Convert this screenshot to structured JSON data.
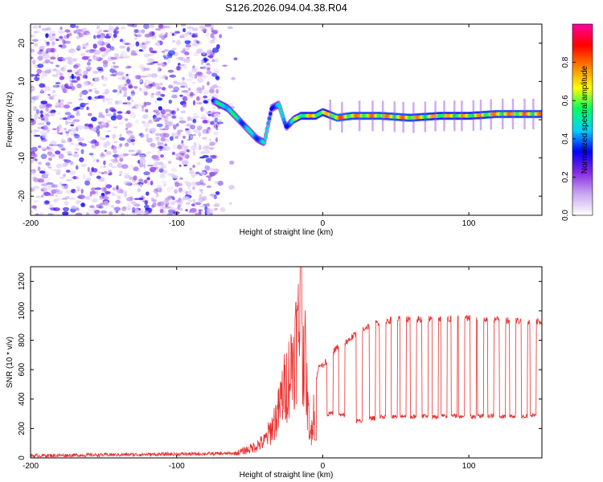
{
  "title": "S126.2026.094.04.38.R04",
  "chart_data": [
    {
      "type": "heatmap",
      "xlabel": "Height of straight line (km)",
      "ylabel": "Frequency (Hz)",
      "xlim": [
        -200,
        150
      ],
      "ylim": [
        -25,
        25
      ],
      "x_ticks": [
        -200,
        -100,
        0,
        100
      ],
      "x_tick_labels": [
        "-200",
        "-100",
        "0",
        "100"
      ],
      "y_ticks": [
        -20,
        -10,
        0,
        10,
        20
      ],
      "y_tick_labels": [
        "-20",
        "-10",
        "0",
        "10",
        "20"
      ],
      "colorbar": {
        "label": "Normalized spectral amplitude",
        "range": [
          0.0,
          1.0
        ],
        "ticks": [
          0.0,
          0.2,
          0.4,
          0.6,
          0.8
        ],
        "tick_labels": [
          "0.0",
          "0.2",
          "0.4",
          "0.6",
          "0.8"
        ],
        "colors": [
          "#ffffff",
          "#c8a8f0",
          "#8a2be2",
          "#0000ff",
          "#00d0ff",
          "#00ff60",
          "#ffff00",
          "#ff8000",
          "#ff0000",
          "#ff00a0"
        ]
      },
      "ridge": {
        "x": [
          -75,
          -70,
          -65,
          -60,
          -55,
          -50,
          -45,
          -40,
          -35,
          -30,
          -25,
          -20,
          -15,
          -10,
          -5,
          0,
          10,
          20,
          40,
          60,
          80,
          100,
          120,
          150
        ],
        "frequency": [
          5,
          4,
          3,
          1,
          -1,
          -3,
          -5,
          -6,
          3,
          4,
          -2,
          0,
          1,
          1,
          1,
          2,
          0.5,
          1,
          1,
          0.5,
          1,
          1,
          1.5,
          1.5
        ],
        "amplitude": [
          0.45,
          0.55,
          0.6,
          0.55,
          0.5,
          0.5,
          0.5,
          0.5,
          0.45,
          0.5,
          0.45,
          0.6,
          0.7,
          0.75,
          0.75,
          0.7,
          0.85,
          0.8,
          0.8,
          0.8,
          0.75,
          0.75,
          0.8,
          0.8
        ]
      },
      "noise_region_x": [
        -200,
        -70
      ]
    },
    {
      "type": "line",
      "xlabel": "Height of straight line (km)",
      "ylabel": "SNR (10 * v/v)",
      "xlim": [
        -200,
        150
      ],
      "ylim": [
        0,
        1300
      ],
      "x_ticks": [
        -200,
        -100,
        0,
        100
      ],
      "x_tick_labels": [
        "-200",
        "-100",
        "0",
        "100"
      ],
      "y_ticks": [
        0,
        200,
        400,
        600,
        800,
        1000,
        1200
      ],
      "y_tick_labels": [
        "0",
        "200",
        "400",
        "600",
        "800",
        "1000",
        "1200"
      ],
      "series": [
        {
          "color": "#e8312f",
          "x": [
            -200,
            -60,
            -50,
            -40,
            -35,
            -30,
            -28,
            -25,
            -22,
            -20,
            -18,
            -15,
            -12,
            -10,
            -8,
            -5,
            -2,
            0,
            5,
            10,
            15,
            20,
            25,
            30,
            35,
            40,
            50,
            60,
            70,
            80,
            90,
            100,
            110,
            120,
            130,
            140,
            150
          ],
          "y": [
            15,
            30,
            60,
            110,
            200,
            320,
            420,
            500,
            600,
            700,
            800,
            900,
            650,
            300,
            150,
            500,
            650,
            620,
            700,
            750,
            780,
            820,
            860,
            890,
            910,
            930,
            940,
            945,
            940,
            945,
            945,
            950,
            945,
            940,
            935,
            930,
            925
          ]
        }
      ],
      "dips": {
        "x": [
          -15,
          -5,
          5,
          13,
          25,
          34,
          41,
          49,
          55,
          62,
          70,
          77,
          83,
          90,
          95,
          103,
          108,
          115,
          123,
          130,
          138,
          144
        ],
        "y": [
          1300,
          120,
          300,
          290,
          250,
          270,
          280,
          280,
          285,
          280,
          285,
          280,
          285,
          285,
          280,
          280,
          285,
          285,
          280,
          285,
          285,
          290
        ]
      }
    }
  ]
}
